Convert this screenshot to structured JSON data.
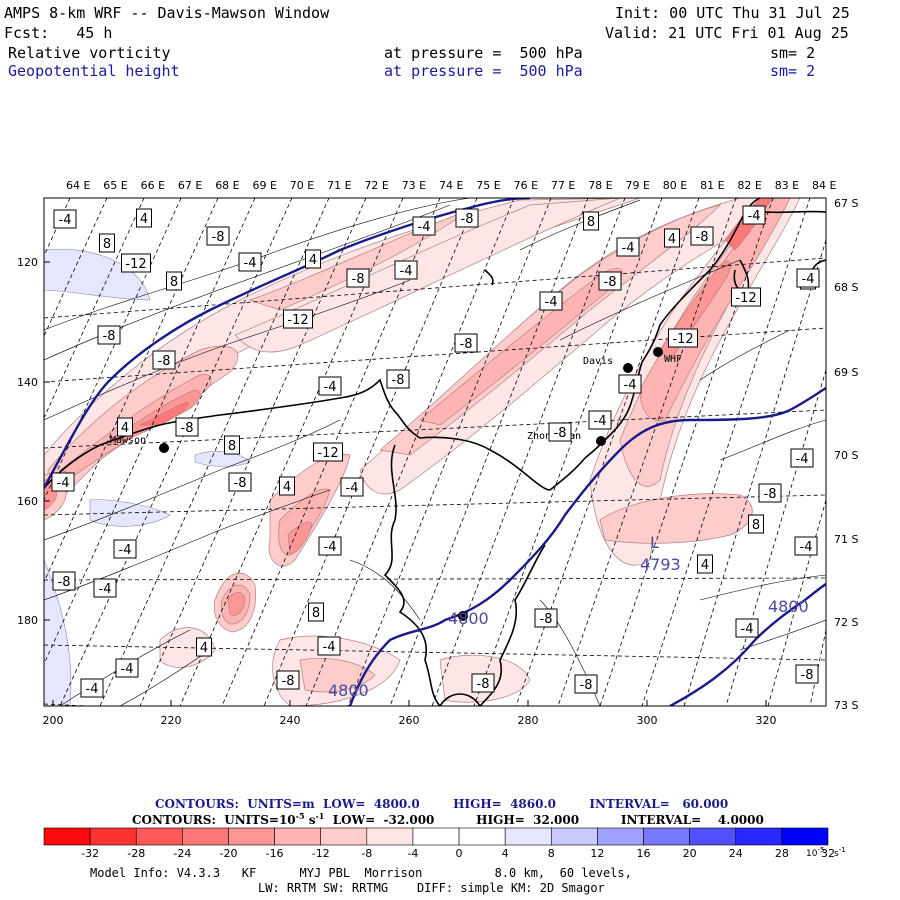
{
  "header": {
    "model_title": "AMPS 8-km WRF -- Davis-Mawson Window",
    "init": "Init: 00 UTC Thu 31 Jul 25",
    "fcst": "Fcst:   45 h",
    "valid": "Valid: 21 UTC Fri 01 Aug 25",
    "field1": {
      "name": "Relative vorticity",
      "level": "at pressure =  500 hPa",
      "smooth": "sm= 2"
    },
    "field2": {
      "name": "Geopotential height",
      "level": "at pressure =  500 hPa",
      "smooth": "sm= 2"
    }
  },
  "axes": {
    "lon_labels": [
      "64 E",
      "65 E",
      "66 E",
      "67 E",
      "68 E",
      "69 E",
      "70 E",
      "71 E",
      "72 E",
      "73 E",
      "74 E",
      "75 E",
      "76 E",
      "77 E",
      "78 E",
      "79 E",
      "80 E",
      "81 E",
      "82 E",
      "83 E",
      "84 E"
    ],
    "lat_labels": [
      "67 S",
      "68 S",
      "69 S",
      "70 S",
      "71 S",
      "72 S",
      "73 S"
    ],
    "x_ticks": [
      "200",
      "220",
      "240",
      "260",
      "280",
      "300",
      "320"
    ],
    "y_ticks": [
      "120",
      "140",
      "160",
      "180"
    ]
  },
  "stations": [
    {
      "name": "Mawson"
    },
    {
      "name": "Davis"
    },
    {
      "name": "WHF"
    },
    {
      "name": "Zhongshan"
    },
    {
      "name": ""
    }
  ],
  "vorticity_labels": [
    "-4",
    "4",
    "8",
    "-8",
    "-12",
    "-4",
    "4",
    "8",
    "-8",
    "-12",
    "-4",
    "-8",
    "-8",
    "-4",
    "8",
    "-4",
    "-8",
    "-4",
    "4",
    "8",
    "-8",
    "-4",
    "-12",
    "-12",
    "-8",
    "-8",
    "-4",
    "-8",
    "8",
    "-8",
    "4",
    "-8",
    "-4",
    "-4",
    "-4",
    "-8",
    "-12",
    "4",
    "-4",
    "-4",
    "8",
    "-4",
    "-8",
    "-4",
    "-4",
    "4",
    "-8",
    "-8",
    "-8",
    "-4",
    "-4",
    "-8",
    "4",
    "-4",
    "-4",
    "-4",
    "-8",
    "8",
    "-4",
    "-8"
  ],
  "height_labels": [
    "4800",
    "4800",
    "4800"
  ],
  "low_center": {
    "letter": "L",
    "value": "4793"
  },
  "contour_info": {
    "line1": "CONTOURS:  UNITS=m  LOW=  4800.0        HIGH=  4860.0        INTERVAL=   60.000",
    "line2a": "CONTOURS:  UNITS=10",
    "line2_sup": "-5",
    "line2b": " s",
    "line2_sup2": "-1",
    "line2c": "  LOW=  -32.000          HIGH=  32.000          INTERVAL=    4.0000"
  },
  "colorbar": {
    "colors": [
      "#ff0a0a",
      "#ff3232",
      "#ff5a5a",
      "#ff7878",
      "#ff9696",
      "#ffb4b4",
      "#ffcccc",
      "#ffe6e6",
      "#ffffff",
      "#ffffff",
      "#e6e6ff",
      "#c8c8ff",
      "#a0a0ff",
      "#7878ff",
      "#5050ff",
      "#2828ff",
      "#0000ff"
    ],
    "tick_labels": [
      "-32",
      "-28",
      "-24",
      "-20",
      "-16",
      "-12",
      "-8",
      "-4",
      "0",
      "4",
      "8",
      "12",
      "16",
      "20",
      "24",
      "28",
      "32"
    ],
    "units": "10",
    "units_sup": "-5",
    "units_s": "s",
    "units_sup2": "-1"
  },
  "model_info": {
    "line1": "Model Info: V4.3.3   KF      MYJ PBL  Morrison          8.0 km,  60 levels,",
    "line2": "LW: RRTM SW: RRTMG    DIFF: simple KM: 2D Smagor"
  }
}
